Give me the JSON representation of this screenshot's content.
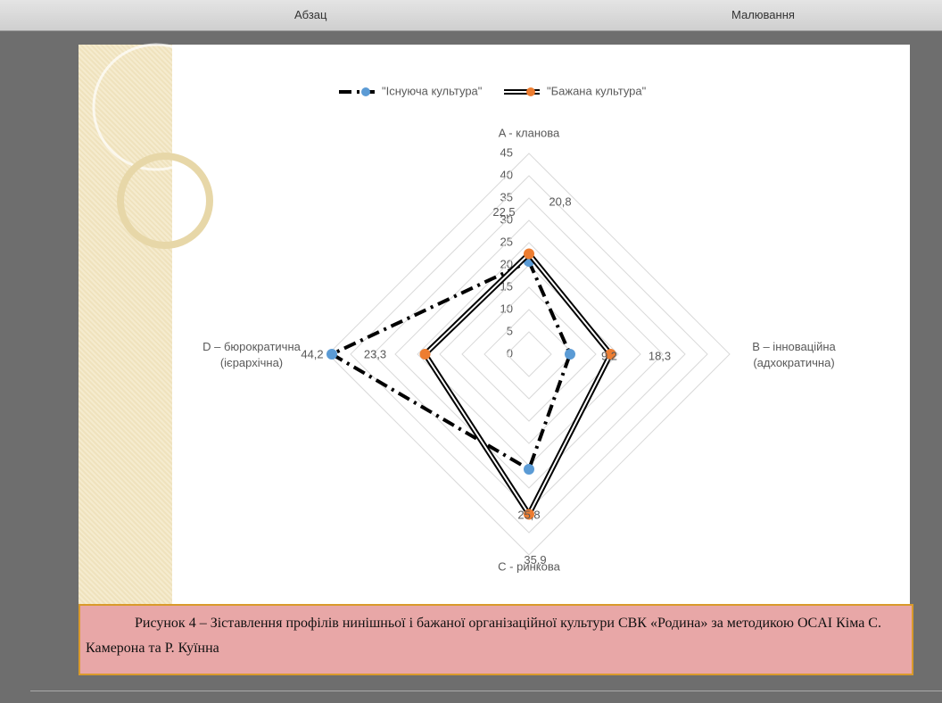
{
  "ribbon": {
    "groups": [
      "Абзац",
      "Малювання"
    ]
  },
  "chart_data": {
    "type": "radar",
    "categories": [
      "A - кланова",
      "B – інноваційна (адхократична)",
      "C - ринкова",
      "D – бюрократична (ієрархічна)"
    ],
    "series": [
      {
        "name": "\"Існуюча культура\"",
        "color": "#5b9bd5",
        "values": [
          20.8,
          9.2,
          25.8,
          44.2
        ],
        "value_labels": [
          "20,8",
          "9,2",
          "25,8",
          "44,2"
        ]
      },
      {
        "name": "\"Бажана культура\"",
        "color": "#ed7d31",
        "values": [
          22.5,
          18.3,
          35.9,
          23.3
        ],
        "value_labels": [
          "22,5",
          "18,3",
          "35,9",
          "23,3"
        ]
      }
    ],
    "rlim": [
      0,
      45
    ],
    "rticks": [
      0,
      5,
      10,
      15,
      20,
      25,
      30,
      35,
      40,
      45
    ],
    "grid": true,
    "legend": "top"
  },
  "caption": "Рисунок 4 – Зіставлення профілів нинішньої і бажаної організаційної культури СВК «Родина» за методикою OCAI Кіма С. Камерона та Р. Куїнна"
}
